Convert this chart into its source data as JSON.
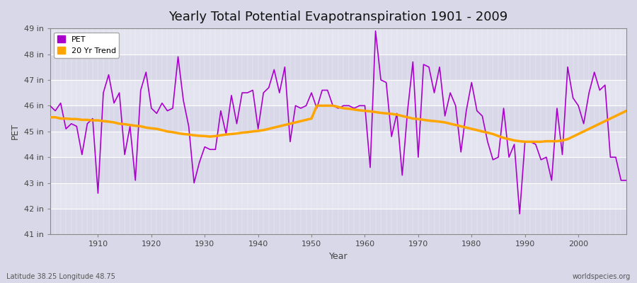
{
  "title": "Yearly Total Potential Evapotranspiration 1901 - 2009",
  "xlabel": "Year",
  "ylabel": "PET",
  "background_color": "#d8d8e8",
  "plot_bg_light": "#e0e0ec",
  "plot_bg_dark": "#d0d0e0",
  "legend_entries": [
    "PET",
    "20 Yr Trend"
  ],
  "pet_color": "#aa00cc",
  "trend_color": "#ffa500",
  "ylim": [
    41,
    49
  ],
  "ytick_labels": [
    "41 in",
    "42 in",
    "43 in",
    "44 in",
    "45 in",
    "46 in",
    "47 in",
    "48 in",
    "49 in"
  ],
  "ytick_values": [
    41,
    42,
    43,
    44,
    45,
    46,
    47,
    48,
    49
  ],
  "xlim": [
    1901,
    2009
  ],
  "xtick_values": [
    1910,
    1920,
    1930,
    1940,
    1950,
    1960,
    1970,
    1980,
    1990,
    2000
  ],
  "footer_left": "Latitude 38.25 Longitude 48.75",
  "footer_right": "worldspecies.org",
  "pet_data": {
    "1901": 46.0,
    "1902": 45.8,
    "1903": 46.1,
    "1904": 45.1,
    "1905": 45.3,
    "1906": 45.2,
    "1907": 44.1,
    "1908": 45.3,
    "1909": 45.5,
    "1910": 42.6,
    "1911": 46.5,
    "1912": 47.2,
    "1913": 46.1,
    "1914": 46.5,
    "1915": 44.1,
    "1916": 45.2,
    "1917": 43.1,
    "1918": 46.6,
    "1919": 47.3,
    "1920": 45.9,
    "1921": 45.7,
    "1922": 46.1,
    "1923": 45.8,
    "1924": 45.9,
    "1925": 47.9,
    "1926": 46.2,
    "1927": 45.2,
    "1928": 43.0,
    "1929": 43.8,
    "1930": 44.4,
    "1931": 44.3,
    "1932": 44.3,
    "1933": 45.8,
    "1934": 44.9,
    "1935": 46.4,
    "1936": 45.3,
    "1937": 46.5,
    "1938": 46.5,
    "1939": 46.6,
    "1940": 45.1,
    "1941": 46.5,
    "1942": 46.7,
    "1943": 47.4,
    "1944": 46.5,
    "1945": 47.5,
    "1946": 44.6,
    "1947": 46.0,
    "1948": 45.9,
    "1949": 46.0,
    "1950": 46.5,
    "1951": 45.9,
    "1952": 46.6,
    "1953": 46.6,
    "1954": 46.0,
    "1955": 45.9,
    "1956": 46.0,
    "1957": 46.0,
    "1958": 45.9,
    "1959": 46.0,
    "1960": 46.0,
    "1961": 43.6,
    "1962": 48.9,
    "1963": 47.0,
    "1964": 46.9,
    "1965": 44.8,
    "1966": 45.7,
    "1967": 43.3,
    "1968": 45.8,
    "1969": 47.7,
    "1970": 44.0,
    "1971": 47.6,
    "1972": 47.5,
    "1973": 46.5,
    "1974": 47.5,
    "1975": 45.6,
    "1976": 46.5,
    "1977": 46.0,
    "1978": 44.2,
    "1979": 45.8,
    "1980": 46.9,
    "1981": 45.8,
    "1982": 45.6,
    "1983": 44.6,
    "1984": 43.9,
    "1985": 44.0,
    "1986": 45.9,
    "1987": 44.0,
    "1988": 44.5,
    "1989": 41.8,
    "1990": 44.6,
    "1991": 44.6,
    "1992": 44.5,
    "1993": 43.9,
    "1994": 44.0,
    "1995": 43.1,
    "1996": 45.9,
    "1997": 44.1,
    "1998": 47.5,
    "1999": 46.3,
    "2000": 46.0,
    "2001": 45.3,
    "2002": 46.5,
    "2003": 47.3,
    "2004": 46.6,
    "2005": 46.8,
    "2006": 44.0,
    "2007": 44.0,
    "2008": 43.1,
    "2009": 43.1
  },
  "trend_data": {
    "1901": 45.55,
    "1902": 45.55,
    "1903": 45.5,
    "1904": 45.5,
    "1905": 45.48,
    "1906": 45.48,
    "1907": 45.45,
    "1908": 45.45,
    "1909": 45.43,
    "1910": 45.43,
    "1911": 45.4,
    "1912": 45.38,
    "1913": 45.35,
    "1914": 45.3,
    "1915": 45.28,
    "1916": 45.25,
    "1917": 45.22,
    "1918": 45.2,
    "1919": 45.15,
    "1920": 45.12,
    "1921": 45.1,
    "1922": 45.05,
    "1923": 45.0,
    "1924": 44.97,
    "1925": 44.93,
    "1926": 44.9,
    "1927": 44.88,
    "1928": 44.85,
    "1929": 44.83,
    "1930": 44.82,
    "1931": 44.8,
    "1932": 44.82,
    "1933": 44.85,
    "1934": 44.88,
    "1935": 44.9,
    "1936": 44.92,
    "1937": 44.95,
    "1938": 44.97,
    "1939": 45.0,
    "1940": 45.02,
    "1941": 45.05,
    "1942": 45.1,
    "1943": 45.15,
    "1944": 45.2,
    "1945": 45.25,
    "1946": 45.3,
    "1947": 45.35,
    "1948": 45.4,
    "1949": 45.45,
    "1950": 45.5,
    "1951": 46.0,
    "1952": 46.0,
    "1953": 46.0,
    "1954": 46.0,
    "1955": 45.95,
    "1956": 45.9,
    "1957": 45.88,
    "1958": 45.85,
    "1959": 45.82,
    "1960": 45.8,
    "1961": 45.78,
    "1962": 45.75,
    "1963": 45.72,
    "1964": 45.7,
    "1965": 45.68,
    "1966": 45.65,
    "1967": 45.6,
    "1968": 45.55,
    "1969": 45.5,
    "1970": 45.48,
    "1971": 45.45,
    "1972": 45.42,
    "1973": 45.4,
    "1974": 45.38,
    "1975": 45.35,
    "1976": 45.3,
    "1977": 45.25,
    "1978": 45.2,
    "1979": 45.15,
    "1980": 45.1,
    "1981": 45.05,
    "1982": 45.0,
    "1983": 44.95,
    "1984": 44.9,
    "1985": 44.82,
    "1986": 44.75,
    "1987": 44.7,
    "1988": 44.65,
    "1989": 44.62,
    "1990": 44.6,
    "1991": 44.6,
    "1992": 44.6,
    "1993": 44.6,
    "1994": 44.62,
    "1995": 44.62,
    "1996": 44.62,
    "1997": 44.65,
    "1998": 44.7,
    "1999": 44.8,
    "2000": 44.9,
    "2001": 45.0,
    "2002": 45.1,
    "2003": 45.2,
    "2004": 45.3,
    "2005": 45.4,
    "2006": 45.5,
    "2007": 45.6,
    "2008": 45.7,
    "2009": 45.8
  }
}
